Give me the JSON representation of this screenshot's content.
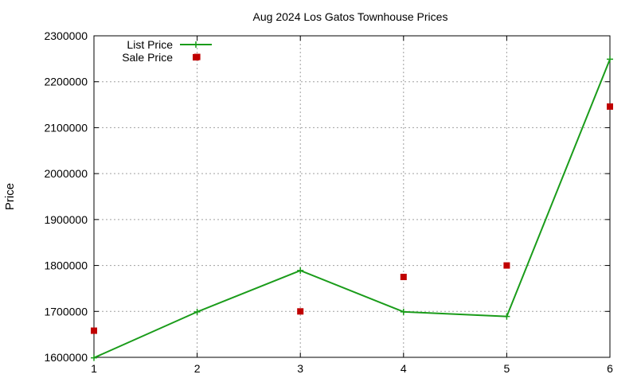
{
  "chart_data": {
    "type": "line",
    "title": "Aug 2024 Los Gatos Townhouse Prices",
    "xlabel": "",
    "ylabel": "Price",
    "x": [
      1,
      2,
      3,
      4,
      5,
      6
    ],
    "xlim": [
      1,
      6
    ],
    "ylim": [
      1600000,
      2300000
    ],
    "x_ticks": [
      "1",
      "2",
      "3",
      "4",
      "5",
      "6"
    ],
    "y_ticks": [
      "1600000",
      "1700000",
      "1800000",
      "1900000",
      "2000000",
      "2100000",
      "2200000",
      "2300000"
    ],
    "grid": true,
    "legend_position": "top-left",
    "series": [
      {
        "name": "List Price",
        "style": "line-with-plus-markers",
        "color": "#1a9c1a",
        "values": [
          1599000,
          1699000,
          1789000,
          1699000,
          1689000,
          2249000
        ]
      },
      {
        "name": "Sale Price",
        "style": "square-points",
        "color": "#c00000",
        "values": [
          1658000,
          2254000,
          1700000,
          1775000,
          1800000,
          2146000
        ]
      }
    ]
  }
}
